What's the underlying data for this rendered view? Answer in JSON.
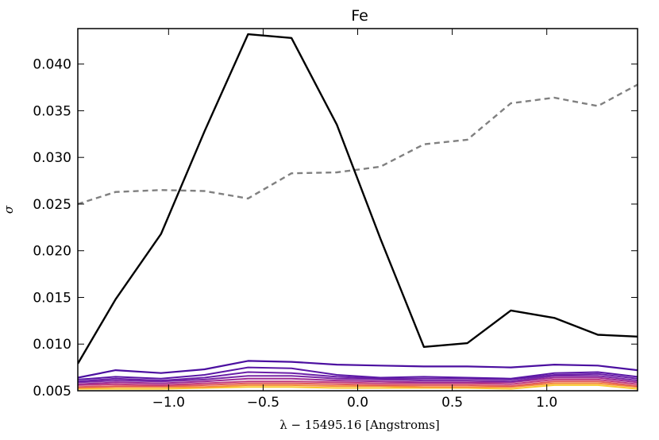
{
  "chart_data": {
    "type": "line",
    "title": "Fe",
    "xlabel": "λ − 15495.16 [Angstroms]",
    "ylabel": "σ",
    "xlim": [
      -1.48,
      1.48
    ],
    "ylim": [
      0.005,
      0.0438
    ],
    "xticks": [
      -1.0,
      -0.5,
      0.0,
      0.5,
      1.0
    ],
    "xtick_labels": [
      "−1.0",
      "−0.5",
      "0.0",
      "0.5",
      "1.0"
    ],
    "yticks": [
      0.005,
      0.01,
      0.015,
      0.02,
      0.025,
      0.03,
      0.035,
      0.04
    ],
    "ytick_labels": [
      "0.005",
      "0.010",
      "0.015",
      "0.020",
      "0.025",
      "0.030",
      "0.035",
      "0.040"
    ],
    "x": [
      -1.48,
      -1.28,
      -1.04,
      -0.81,
      -0.58,
      -0.35,
      -0.11,
      0.12,
      0.35,
      0.58,
      0.81,
      1.04,
      1.27,
      1.48
    ],
    "series": [
      {
        "name": "black",
        "color": "#000000",
        "style": "solid",
        "width": 2.4,
        "values": [
          0.0079,
          0.0148,
          0.0218,
          0.0328,
          0.0432,
          0.0428,
          0.0335,
          0.0213,
          0.0097,
          0.0101,
          0.0136,
          0.0128,
          0.011,
          0.0108
        ]
      },
      {
        "name": "grey-dashed",
        "color": "#808080",
        "style": "dashed",
        "width": 2.4,
        "values": [
          0.025,
          0.0263,
          0.0265,
          0.0264,
          0.0256,
          0.0283,
          0.0284,
          0.029,
          0.0314,
          0.0319,
          0.0358,
          0.0364,
          0.0355,
          0.0378
        ]
      },
      {
        "name": "purple-1",
        "color": "#4b0fa0",
        "style": "solid",
        "width": 2.2,
        "values": [
          0.0064,
          0.0072,
          0.0069,
          0.0073,
          0.0082,
          0.0081,
          0.0078,
          0.0077,
          0.0076,
          0.0076,
          0.0075,
          0.0078,
          0.0077,
          0.0072
        ]
      },
      {
        "name": "purple-2",
        "color": "#5a17a6",
        "style": "solid",
        "width": 2.0,
        "values": [
          0.0062,
          0.0065,
          0.0063,
          0.0067,
          0.0075,
          0.0074,
          0.0067,
          0.0064,
          0.0065,
          0.0064,
          0.0063,
          0.0069,
          0.007,
          0.0065
        ]
      },
      {
        "name": "purple-3",
        "color": "#6a1fa8",
        "style": "solid",
        "width": 2.0,
        "values": [
          0.006,
          0.0063,
          0.0061,
          0.0064,
          0.007,
          0.0069,
          0.0065,
          0.0063,
          0.0063,
          0.0063,
          0.0062,
          0.0067,
          0.0068,
          0.0063
        ]
      },
      {
        "name": "purple-4",
        "color": "#7a28a6",
        "style": "solid",
        "width": 2.0,
        "values": [
          0.0059,
          0.0061,
          0.006,
          0.0062,
          0.0066,
          0.0066,
          0.0063,
          0.0062,
          0.0061,
          0.0061,
          0.006,
          0.0066,
          0.0066,
          0.0061
        ]
      },
      {
        "name": "magenta-1",
        "color": "#9c2b95",
        "style": "solid",
        "width": 2.0,
        "values": [
          0.0057,
          0.0059,
          0.0058,
          0.006,
          0.0063,
          0.0063,
          0.0061,
          0.006,
          0.0059,
          0.0059,
          0.0059,
          0.0064,
          0.0064,
          0.0059
        ]
      },
      {
        "name": "magenta-2",
        "color": "#c13c7e",
        "style": "solid",
        "width": 2.0,
        "values": [
          0.0056,
          0.0057,
          0.0056,
          0.0058,
          0.006,
          0.006,
          0.0059,
          0.0058,
          0.0058,
          0.0058,
          0.0057,
          0.0062,
          0.0062,
          0.0057
        ]
      },
      {
        "name": "red-orange",
        "color": "#e05c5c",
        "style": "solid",
        "width": 2.0,
        "values": [
          0.0054,
          0.0055,
          0.0055,
          0.0056,
          0.0058,
          0.0058,
          0.0057,
          0.0056,
          0.0056,
          0.0056,
          0.0055,
          0.006,
          0.006,
          0.0055
        ]
      },
      {
        "name": "orange",
        "color": "#f58b3c",
        "style": "solid",
        "width": 2.0,
        "values": [
          0.0053,
          0.0054,
          0.0054,
          0.0054,
          0.0056,
          0.0056,
          0.0055,
          0.0055,
          0.0054,
          0.0054,
          0.0054,
          0.0058,
          0.0058,
          0.0054
        ]
      },
      {
        "name": "yellow",
        "color": "#f8c930",
        "style": "solid",
        "width": 2.0,
        "values": [
          0.0052,
          0.0052,
          0.0052,
          0.0053,
          0.0054,
          0.0054,
          0.0053,
          0.0053,
          0.0053,
          0.0053,
          0.0052,
          0.0056,
          0.0056,
          0.0052
        ]
      }
    ]
  }
}
